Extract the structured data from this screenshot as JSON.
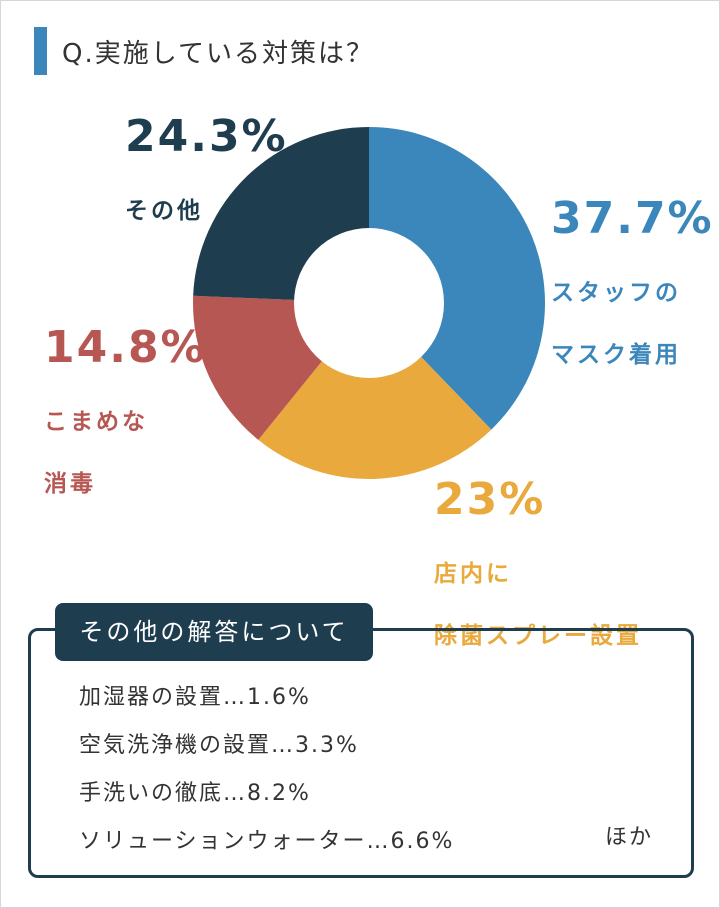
{
  "question": "Q.実施している対策は？",
  "colors": {
    "accent": "#3b86bb",
    "navy": "#1e3d4e",
    "blue": "#3b86bb",
    "yellow": "#e9a93d",
    "red": "#b75753"
  },
  "chart_data": {
    "type": "pie",
    "donut": true,
    "slices": [
      {
        "label": "スタッフのマスク着用",
        "label_lines": [
          "スタッフの",
          "マスク着用"
        ],
        "value": 37.7,
        "value_text": "37.7%",
        "color": "#3b86bb"
      },
      {
        "label": "店内に除菌スプレー設置",
        "label_lines": [
          "店内に",
          "除菌スプレー設置"
        ],
        "value": 23,
        "value_text": "23%",
        "color": "#e9a93d"
      },
      {
        "label": "こまめな消毒",
        "label_lines": [
          "こまめな",
          "消毒"
        ],
        "value": 14.8,
        "value_text": "14.8%",
        "color": "#b75753"
      },
      {
        "label": "その他",
        "label_lines": [
          "その他"
        ],
        "value": 24.3,
        "value_text": "24.3%",
        "color": "#1e3d4e"
      }
    ],
    "start_angle_deg": 0,
    "direction": "clockwise"
  },
  "others": {
    "title": "その他の解答について",
    "items": [
      "加湿器の設置…1.6%",
      "空気洗浄機の設置…3.3%",
      "手洗いの徹底…8.2%",
      "ソリューションウォーター…6.6%"
    ],
    "suffix": "ほか"
  }
}
